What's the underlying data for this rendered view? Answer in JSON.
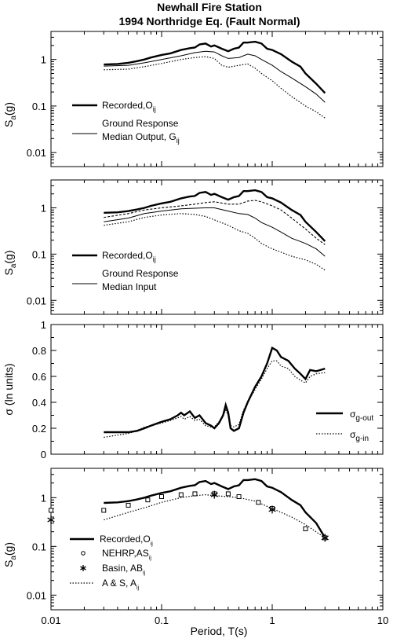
{
  "title_line1": "Newhall Fire Station",
  "title_line2": "1994 Northridge Eq. (Fault Normal)",
  "x_axis": {
    "label": "Period, T(s)",
    "scale": "log",
    "range": [
      0.01,
      10
    ],
    "ticks": [
      {
        "v": 0.01,
        "label": "0.01"
      },
      {
        "v": 0.1,
        "label": "0.1"
      },
      {
        "v": 1,
        "label": "1"
      },
      {
        "v": 10,
        "label": "10"
      }
    ]
  },
  "chart_data": [
    {
      "type": "line",
      "id": "p1",
      "ylabel": "Sa(g)",
      "yscale": "log",
      "ylim": [
        0.005,
        4
      ],
      "yticks": [
        {
          "v": 0.01,
          "label": "0.01"
        },
        {
          "v": 0.1,
          "label": "0.1"
        },
        {
          "v": 1,
          "label": "1"
        }
      ],
      "legend": [
        {
          "style": "thick",
          "text": "Recorded,O",
          "sub": "ij"
        },
        {
          "style": "thin",
          "text": "Ground Response",
          "text2": "Median Output, G",
          "sub": "ij"
        }
      ],
      "series": [
        {
          "style": "thick",
          "x": [
            0.03,
            0.04,
            0.05,
            0.06,
            0.07,
            0.08,
            0.1,
            0.12,
            0.15,
            0.18,
            0.2,
            0.22,
            0.25,
            0.28,
            0.3,
            0.35,
            0.4,
            0.45,
            0.5,
            0.55,
            0.6,
            0.7,
            0.8,
            0.9,
            1.0,
            1.2,
            1.5,
            1.8,
            2.0,
            2.5,
            3.0
          ],
          "y": [
            0.78,
            0.8,
            0.85,
            0.92,
            1.0,
            1.1,
            1.25,
            1.35,
            1.6,
            1.75,
            1.8,
            2.1,
            2.2,
            1.9,
            2.0,
            1.7,
            1.5,
            1.7,
            1.8,
            2.3,
            2.3,
            2.4,
            2.2,
            1.7,
            1.6,
            1.3,
            0.9,
            0.7,
            0.5,
            0.3,
            0.19
          ]
        },
        {
          "style": "thin",
          "x": [
            0.03,
            0.05,
            0.07,
            0.1,
            0.15,
            0.2,
            0.25,
            0.3,
            0.35,
            0.4,
            0.5,
            0.6,
            0.7,
            0.8,
            1.0,
            1.2,
            1.5,
            2.0,
            2.5,
            3.0
          ],
          "y": [
            0.72,
            0.75,
            0.85,
            1.0,
            1.2,
            1.4,
            1.5,
            1.45,
            1.2,
            1.05,
            1.1,
            1.3,
            1.2,
            1.0,
            0.75,
            0.55,
            0.4,
            0.26,
            0.18,
            0.12
          ]
        },
        {
          "style": "dotted",
          "x": [
            0.03,
            0.05,
            0.07,
            0.1,
            0.15,
            0.2,
            0.25,
            0.3,
            0.35,
            0.4,
            0.5,
            0.6,
            0.7,
            0.8,
            1.0,
            1.2,
            1.5,
            2.0,
            2.5,
            3.0
          ],
          "y": [
            0.6,
            0.62,
            0.7,
            0.82,
            1.0,
            1.1,
            1.15,
            1.05,
            0.75,
            0.68,
            0.75,
            0.8,
            0.65,
            0.5,
            0.35,
            0.24,
            0.16,
            0.1,
            0.075,
            0.055
          ]
        }
      ]
    },
    {
      "type": "line",
      "id": "p2",
      "ylabel": "Sa(g)",
      "yscale": "log",
      "ylim": [
        0.005,
        4
      ],
      "yticks": [
        {
          "v": 0.01,
          "label": "0.01"
        },
        {
          "v": 0.1,
          "label": "0.1"
        },
        {
          "v": 1,
          "label": "1"
        }
      ],
      "legend": [
        {
          "style": "thick",
          "text": "Recorded,O",
          "sub": "ij"
        },
        {
          "style": "thin",
          "text": "Ground Response",
          "text2": "Median Input"
        }
      ],
      "series": [
        {
          "style": "thick",
          "x": [
            0.03,
            0.04,
            0.05,
            0.06,
            0.07,
            0.08,
            0.1,
            0.12,
            0.15,
            0.18,
            0.2,
            0.22,
            0.25,
            0.28,
            0.3,
            0.35,
            0.4,
            0.45,
            0.5,
            0.55,
            0.6,
            0.7,
            0.8,
            0.9,
            1.0,
            1.2,
            1.5,
            1.8,
            2.0,
            2.5,
            3.0
          ],
          "y": [
            0.78,
            0.8,
            0.85,
            0.92,
            1.0,
            1.1,
            1.25,
            1.35,
            1.6,
            1.75,
            1.8,
            2.1,
            2.2,
            1.9,
            2.0,
            1.7,
            1.5,
            1.7,
            1.8,
            2.3,
            2.3,
            2.4,
            2.2,
            1.7,
            1.6,
            1.3,
            0.9,
            0.7,
            0.5,
            0.3,
            0.19
          ]
        },
        {
          "style": "dashed",
          "x": [
            0.03,
            0.05,
            0.07,
            0.1,
            0.15,
            0.2,
            0.25,
            0.3,
            0.4,
            0.5,
            0.6,
            0.7,
            0.8,
            1.0,
            1.2,
            1.5,
            2.0,
            2.5,
            3.0
          ],
          "y": [
            0.62,
            0.75,
            0.9,
            1.0,
            1.1,
            1.2,
            1.3,
            1.35,
            1.2,
            1.2,
            1.4,
            1.45,
            1.35,
            1.1,
            0.9,
            0.6,
            0.35,
            0.22,
            0.16
          ]
        },
        {
          "style": "thin",
          "x": [
            0.03,
            0.05,
            0.07,
            0.1,
            0.15,
            0.2,
            0.25,
            0.3,
            0.4,
            0.5,
            0.6,
            0.7,
            0.8,
            1.0,
            1.2,
            1.5,
            2.0,
            2.5,
            3.0
          ],
          "y": [
            0.5,
            0.6,
            0.75,
            0.85,
            0.95,
            0.98,
            1.0,
            1.0,
            0.85,
            0.75,
            0.72,
            0.6,
            0.48,
            0.38,
            0.3,
            0.22,
            0.17,
            0.13,
            0.09
          ]
        },
        {
          "style": "dotted",
          "x": [
            0.03,
            0.05,
            0.07,
            0.1,
            0.15,
            0.2,
            0.25,
            0.3,
            0.4,
            0.5,
            0.6,
            0.7,
            0.8,
            1.0,
            1.2,
            1.5,
            2.0,
            2.5,
            3.0
          ],
          "y": [
            0.42,
            0.5,
            0.62,
            0.7,
            0.75,
            0.72,
            0.65,
            0.55,
            0.42,
            0.32,
            0.28,
            0.22,
            0.17,
            0.13,
            0.11,
            0.09,
            0.075,
            0.06,
            0.045
          ]
        }
      ]
    },
    {
      "type": "line",
      "id": "p3",
      "ylabel": "σ (ln units)",
      "yscale": "linear",
      "ylim": [
        0,
        1
      ],
      "yticks": [
        {
          "v": 0,
          "label": "0"
        },
        {
          "v": 0.2,
          "label": "0.2"
        },
        {
          "v": 0.4,
          "label": "0.4"
        },
        {
          "v": 0.6,
          "label": "0.6"
        },
        {
          "v": 0.8,
          "label": "0.8"
        },
        {
          "v": 1,
          "label": "1"
        }
      ],
      "legend": [
        {
          "style": "thick",
          "text": "σ",
          "sub": "g-out"
        },
        {
          "style": "dotted",
          "text": "σ",
          "sub": "g-in"
        }
      ],
      "series": [
        {
          "style": "thick",
          "x": [
            0.03,
            0.05,
            0.06,
            0.07,
            0.08,
            0.1,
            0.12,
            0.14,
            0.15,
            0.16,
            0.18,
            0.2,
            0.22,
            0.25,
            0.28,
            0.3,
            0.33,
            0.36,
            0.38,
            0.4,
            0.42,
            0.45,
            0.5,
            0.55,
            0.6,
            0.7,
            0.8,
            0.9,
            1.0,
            1.1,
            1.2,
            1.4,
            1.6,
            1.8,
            2.0,
            2.2,
            2.5,
            3.0
          ],
          "y": [
            0.17,
            0.17,
            0.18,
            0.2,
            0.22,
            0.25,
            0.27,
            0.3,
            0.32,
            0.3,
            0.33,
            0.28,
            0.3,
            0.24,
            0.22,
            0.2,
            0.24,
            0.3,
            0.38,
            0.32,
            0.2,
            0.18,
            0.2,
            0.32,
            0.4,
            0.52,
            0.6,
            0.7,
            0.82,
            0.8,
            0.75,
            0.72,
            0.66,
            0.62,
            0.58,
            0.65,
            0.64,
            0.66
          ]
        },
        {
          "style": "dotted",
          "x": [
            0.03,
            0.05,
            0.06,
            0.07,
            0.08,
            0.1,
            0.12,
            0.14,
            0.15,
            0.16,
            0.18,
            0.2,
            0.22,
            0.25,
            0.28,
            0.3,
            0.33,
            0.36,
            0.38,
            0.4,
            0.42,
            0.45,
            0.5,
            0.55,
            0.6,
            0.7,
            0.8,
            0.9,
            1.0,
            1.1,
            1.2,
            1.4,
            1.6,
            1.8,
            2.0,
            2.2,
            2.5,
            3.0
          ],
          "y": [
            0.13,
            0.16,
            0.18,
            0.21,
            0.22,
            0.24,
            0.26,
            0.28,
            0.29,
            0.27,
            0.29,
            0.26,
            0.27,
            0.22,
            0.21,
            0.21,
            0.25,
            0.3,
            0.34,
            0.3,
            0.22,
            0.21,
            0.23,
            0.34,
            0.4,
            0.5,
            0.58,
            0.66,
            0.72,
            0.72,
            0.68,
            0.66,
            0.6,
            0.57,
            0.55,
            0.6,
            0.62,
            0.63
          ]
        }
      ]
    },
    {
      "type": "line",
      "id": "p4",
      "ylabel": "Sa(g)",
      "yscale": "log",
      "ylim": [
        0.005,
        4
      ],
      "yticks": [
        {
          "v": 0.01,
          "label": "0.01"
        },
        {
          "v": 0.1,
          "label": "0.1"
        },
        {
          "v": 1,
          "label": "1"
        }
      ],
      "legend": [
        {
          "style": "thick",
          "text": "Recorded,O",
          "sub": "ij"
        },
        {
          "style": "circle",
          "text": "NEHRP,AS",
          "sub": "ij"
        },
        {
          "style": "star",
          "text": "Basin, AB",
          "sub": "ij"
        },
        {
          "style": "dotted",
          "text": "A & S, A",
          "sub": "ij"
        }
      ],
      "series": [
        {
          "style": "thick",
          "x": [
            0.03,
            0.04,
            0.05,
            0.06,
            0.07,
            0.08,
            0.1,
            0.12,
            0.15,
            0.18,
            0.2,
            0.22,
            0.25,
            0.28,
            0.3,
            0.35,
            0.4,
            0.45,
            0.5,
            0.55,
            0.6,
            0.7,
            0.8,
            0.9,
            1.0,
            1.2,
            1.5,
            1.8,
            2.0,
            2.5,
            3.0
          ],
          "y": [
            0.78,
            0.8,
            0.85,
            0.92,
            1.0,
            1.1,
            1.25,
            1.35,
            1.6,
            1.75,
            1.8,
            2.1,
            2.2,
            1.9,
            2.0,
            1.7,
            1.5,
            1.7,
            1.8,
            2.3,
            2.3,
            2.4,
            2.2,
            1.7,
            1.6,
            1.3,
            0.9,
            0.7,
            0.5,
            0.3,
            0.15
          ]
        },
        {
          "style": "dotted",
          "x": [
            0.03,
            0.05,
            0.07,
            0.1,
            0.15,
            0.2,
            0.25,
            0.3,
            0.4,
            0.5,
            0.7,
            1.0,
            1.5,
            2.0,
            3.0
          ],
          "y": [
            0.35,
            0.5,
            0.62,
            0.8,
            1.0,
            1.1,
            1.15,
            1.1,
            1.05,
            1.0,
            0.85,
            0.6,
            0.4,
            0.28,
            0.15
          ]
        },
        {
          "style": "squares",
          "x": [
            0.01,
            0.03,
            0.05,
            0.075,
            0.1,
            0.15,
            0.2,
            0.3,
            0.4,
            0.5,
            0.75,
            1.0,
            2.0,
            3.0
          ],
          "y": [
            0.55,
            0.55,
            0.7,
            0.9,
            1.05,
            1.15,
            1.2,
            1.2,
            1.2,
            1.05,
            0.8,
            0.6,
            0.23,
            0.15
          ]
        },
        {
          "style": "stars",
          "x": [
            0.01,
            0.3,
            1.0,
            3.0
          ],
          "y": [
            0.35,
            1.15,
            0.57,
            0.15
          ]
        }
      ]
    }
  ]
}
